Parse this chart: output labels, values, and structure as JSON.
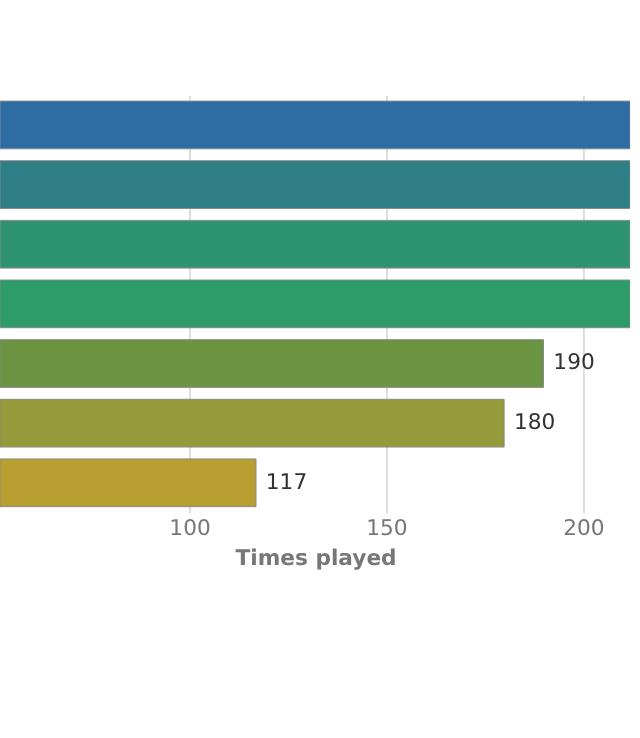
{
  "chart_data": {
    "type": "bar",
    "orientation": "horizontal",
    "xlabel": "Times played",
    "categories": [
      null,
      null,
      null,
      null,
      null,
      null,
      null
    ],
    "values": [
      212,
      212,
      212,
      212,
      190,
      180,
      117
    ],
    "value_labels": [
      null,
      null,
      null,
      null,
      "190",
      "180",
      "117"
    ],
    "colors": [
      "#2e6ca4",
      "#2e7f86",
      "#2e9370",
      "#2e9c68",
      "#6b9542",
      "#959a3a",
      "#b99e32"
    ],
    "xlim": [
      52,
      212
    ],
    "xticks": [
      100,
      150,
      200
    ],
    "grid": "x",
    "tick_labels": "x"
  }
}
